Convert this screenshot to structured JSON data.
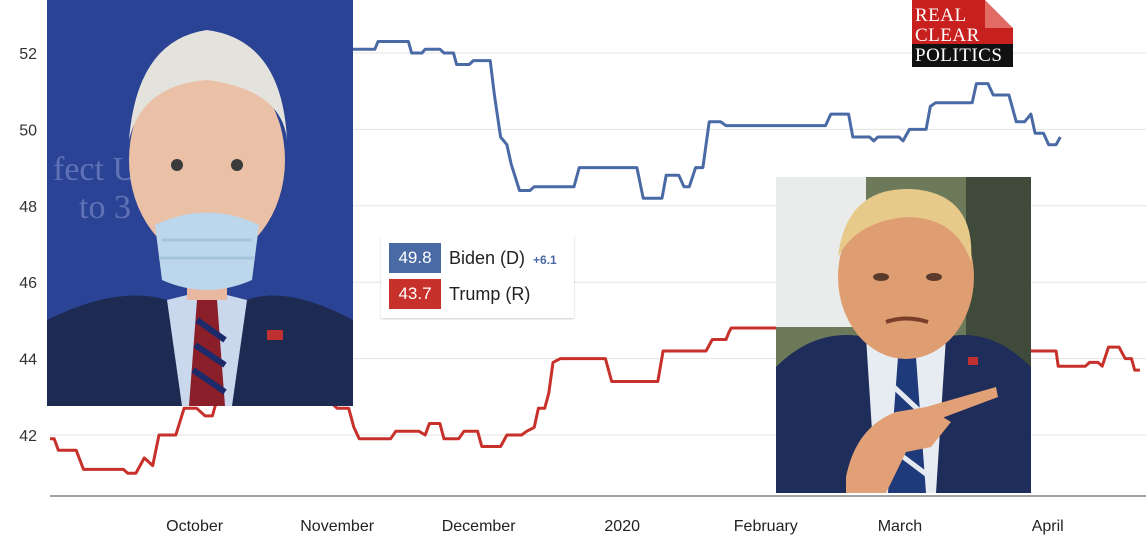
{
  "logo": {
    "line1": "REAL",
    "line2": "CLEAR",
    "line3": "POLITICS"
  },
  "legend": {
    "biden": {
      "value": "49.8",
      "name": "Biden (D)",
      "spread": "+6.1",
      "color": "#4a6aa5"
    },
    "trump": {
      "value": "43.7",
      "name": "Trump (R)",
      "color": "#c8312b"
    }
  },
  "photos": {
    "biden": "Joe Biden wearing a face mask",
    "trump": "Donald Trump pointing"
  },
  "chart_data": {
    "type": "line",
    "ylim": [
      40.5,
      53
    ],
    "yticks": [
      42,
      44,
      46,
      48,
      50,
      52
    ],
    "ytick_labels": [
      "42",
      "44",
      "46",
      "48",
      "50",
      "52"
    ],
    "x_labels": [
      {
        "t": 0.138,
        "label": "October"
      },
      {
        "t": 0.274,
        "label": "November"
      },
      {
        "t": 0.409,
        "label": "December"
      },
      {
        "t": 0.546,
        "label": "2020"
      },
      {
        "t": 0.683,
        "label": "February"
      },
      {
        "t": 0.811,
        "label": "March"
      },
      {
        "t": 0.952,
        "label": "April"
      }
    ],
    "series": [
      {
        "name": "Biden (D)",
        "color": "#4a6aa5",
        "points": [
          [
            0.268,
            50.0
          ],
          [
            0.272,
            52.1
          ],
          [
            0.31,
            52.1
          ],
          [
            0.313,
            52.3
          ],
          [
            0.342,
            52.3
          ],
          [
            0.345,
            52.0
          ],
          [
            0.355,
            52.0
          ],
          [
            0.358,
            52.1
          ],
          [
            0.372,
            52.1
          ],
          [
            0.376,
            52.0
          ],
          [
            0.385,
            52.0
          ],
          [
            0.388,
            51.7
          ],
          [
            0.4,
            51.7
          ],
          [
            0.404,
            51.8
          ],
          [
            0.42,
            51.8
          ],
          [
            0.424,
            50.9
          ],
          [
            0.43,
            49.8
          ],
          [
            0.436,
            49.6
          ],
          [
            0.44,
            49.1
          ],
          [
            0.448,
            48.4
          ],
          [
            0.458,
            48.4
          ],
          [
            0.462,
            48.5
          ],
          [
            0.5,
            48.5
          ],
          [
            0.505,
            49.0
          ],
          [
            0.56,
            49.0
          ],
          [
            0.566,
            48.2
          ],
          [
            0.584,
            48.2
          ],
          [
            0.588,
            48.8
          ],
          [
            0.6,
            48.8
          ],
          [
            0.605,
            48.5
          ],
          [
            0.61,
            48.5
          ],
          [
            0.616,
            49.0
          ],
          [
            0.623,
            49.0
          ],
          [
            0.629,
            50.2
          ],
          [
            0.64,
            50.2
          ],
          [
            0.645,
            50.1
          ],
          [
            0.74,
            50.1
          ],
          [
            0.745,
            50.4
          ],
          [
            0.762,
            50.4
          ],
          [
            0.766,
            49.8
          ],
          [
            0.782,
            49.8
          ],
          [
            0.786,
            49.7
          ],
          [
            0.79,
            49.8
          ],
          [
            0.81,
            49.8
          ],
          [
            0.814,
            49.7
          ],
          [
            0.82,
            50.0
          ],
          [
            0.836,
            50.0
          ],
          [
            0.84,
            50.6
          ],
          [
            0.845,
            50.7
          ],
          [
            0.88,
            50.7
          ],
          [
            0.884,
            51.2
          ],
          [
            0.895,
            51.2
          ],
          [
            0.9,
            50.9
          ],
          [
            0.915,
            50.9
          ],
          [
            0.922,
            50.2
          ],
          [
            0.93,
            50.2
          ],
          [
            0.936,
            50.4
          ],
          [
            0.94,
            49.9
          ],
          [
            0.948,
            49.9
          ],
          [
            0.953,
            49.6
          ],
          [
            0.96,
            49.6
          ],
          [
            0.964,
            49.8
          ]
        ]
      },
      {
        "name": "Trump (R)",
        "color": "#c8312b",
        "points": [
          [
            0.0,
            41.9
          ],
          [
            0.004,
            41.9
          ],
          [
            0.008,
            41.6
          ],
          [
            0.025,
            41.6
          ],
          [
            0.032,
            41.1
          ],
          [
            0.07,
            41.1
          ],
          [
            0.074,
            41.0
          ],
          [
            0.082,
            41.0
          ],
          [
            0.09,
            41.4
          ],
          [
            0.098,
            41.2
          ],
          [
            0.104,
            42.0
          ],
          [
            0.12,
            42.0
          ],
          [
            0.128,
            42.7
          ],
          [
            0.14,
            42.7
          ],
          [
            0.148,
            42.5
          ],
          [
            0.155,
            42.5
          ],
          [
            0.158,
            42.8
          ],
          [
            0.27,
            42.8
          ],
          [
            0.274,
            42.7
          ],
          [
            0.285,
            42.7
          ],
          [
            0.29,
            42.2
          ],
          [
            0.295,
            41.9
          ],
          [
            0.325,
            41.9
          ],
          [
            0.33,
            42.1
          ],
          [
            0.352,
            42.1
          ],
          [
            0.358,
            42.0
          ],
          [
            0.362,
            42.3
          ],
          [
            0.372,
            42.3
          ],
          [
            0.376,
            41.9
          ],
          [
            0.39,
            41.9
          ],
          [
            0.395,
            42.1
          ],
          [
            0.408,
            42.1
          ],
          [
            0.412,
            41.7
          ],
          [
            0.43,
            41.7
          ],
          [
            0.436,
            42.0
          ],
          [
            0.45,
            42.0
          ],
          [
            0.455,
            42.1
          ],
          [
            0.462,
            42.2
          ],
          [
            0.466,
            42.7
          ],
          [
            0.472,
            42.7
          ],
          [
            0.476,
            43.1
          ],
          [
            0.48,
            43.9
          ],
          [
            0.487,
            44.0
          ],
          [
            0.53,
            44.0
          ],
          [
            0.536,
            43.4
          ],
          [
            0.58,
            43.4
          ],
          [
            0.585,
            44.2
          ],
          [
            0.626,
            44.2
          ],
          [
            0.632,
            44.5
          ],
          [
            0.645,
            44.5
          ],
          [
            0.648,
            44.7
          ],
          [
            0.65,
            44.8
          ],
          [
            0.905,
            44.8
          ],
          [
            0.912,
            44.2
          ],
          [
            0.96,
            44.2
          ],
          [
            0.962,
            43.8
          ],
          [
            0.988,
            43.8
          ],
          [
            0.992,
            43.9
          ],
          [
            1.0,
            43.9
          ],
          [
            1.004,
            43.8
          ],
          [
            1.01,
            44.3
          ],
          [
            1.02,
            44.3
          ],
          [
            1.026,
            44.0
          ],
          [
            1.032,
            44.0
          ],
          [
            1.035,
            43.7
          ],
          [
            1.04,
            43.7
          ]
        ]
      }
    ]
  }
}
